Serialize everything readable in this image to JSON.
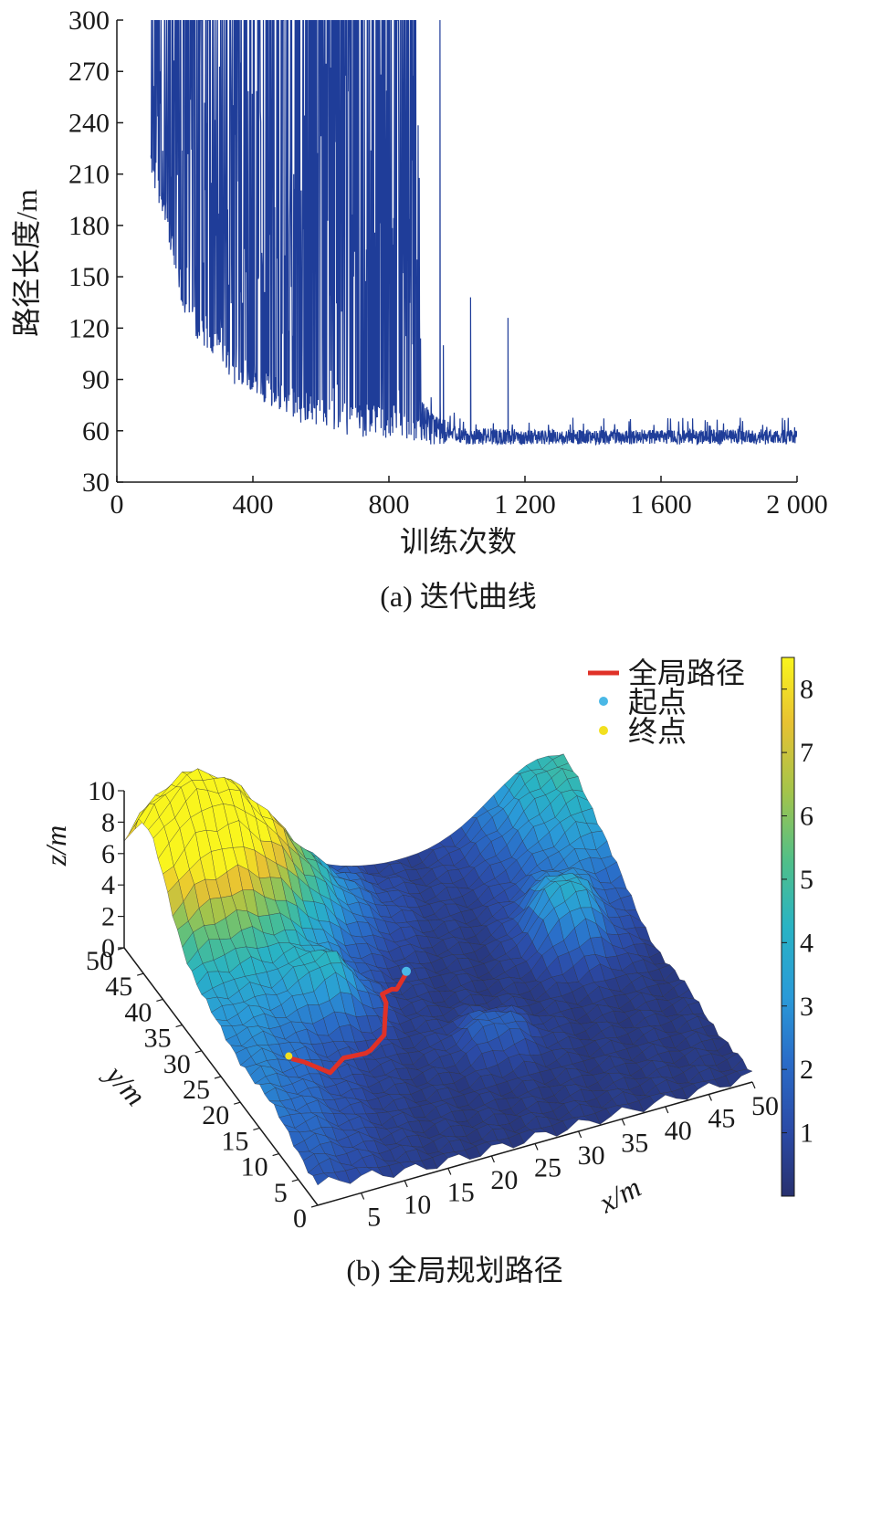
{
  "chart_data": [
    {
      "type": "line",
      "caption": "(a) 迭代曲线",
      "xlabel": "训练次数",
      "ylabel": "路径长度/m",
      "xlim": [
        0,
        2000
      ],
      "ylim": [
        30,
        300
      ],
      "xticks": [
        "0",
        "400",
        "800",
        "1 200",
        "1 600",
        "2 000"
      ],
      "xtick_values": [
        0,
        400,
        800,
        1200,
        1600,
        2000
      ],
      "yticks": [
        "30",
        "60",
        "90",
        "120",
        "150",
        "180",
        "210",
        "240",
        "270",
        "300"
      ],
      "ytick_values": [
        30,
        60,
        90,
        120,
        150,
        180,
        210,
        240,
        270,
        300
      ],
      "line_color": "#1f3d99",
      "series": [
        {
          "values_description_note": "",
          "envelope_x": [
            100,
            150,
            200,
            250,
            300,
            350,
            400,
            450,
            500,
            550,
            600,
            650,
            700,
            750,
            800,
            850,
            880,
            900,
            1000,
            1200,
            1400,
            1600,
            1800,
            2000
          ],
          "envelope_min": [
            210,
            170,
            125,
            110,
            100,
            85,
            80,
            75,
            68,
            63,
            60,
            58,
            57,
            56,
            55,
            54,
            53,
            52,
            52,
            52,
            52,
            52,
            52,
            52
          ],
          "envelope_max": [
            300,
            300,
            300,
            300,
            300,
            300,
            300,
            300,
            300,
            300,
            300,
            300,
            300,
            300,
            300,
            300,
            300,
            95,
            70,
            68,
            68,
            68,
            68,
            68
          ],
          "spikes": [
            [
              950,
              300
            ],
            [
              1040,
              138
            ],
            [
              1150,
              126
            ],
            [
              960,
              110
            ]
          ]
        }
      ]
    },
    {
      "type": "surface3d",
      "caption": "(b) 全局规划路径",
      "xlabel": "x/m",
      "ylabel": "y/m",
      "zlabel": "z/m",
      "xticks": [
        "5",
        "10",
        "15",
        "20",
        "25",
        "30",
        "35",
        "40",
        "45",
        "50"
      ],
      "yticks": [
        "0",
        "5",
        "10",
        "15",
        "20",
        "25",
        "30",
        "35",
        "40",
        "45",
        "50"
      ],
      "zticks": [
        "0",
        "2",
        "4",
        "6",
        "8",
        "10"
      ],
      "colorbar_ticks": [
        "1",
        "2",
        "3",
        "4",
        "5",
        "6",
        "7",
        "8"
      ],
      "colorbar_range": [
        0,
        8.5
      ],
      "colormap": [
        "#3e26a8",
        "#2f5fd0",
        "#1f8fe8",
        "#17b3d6",
        "#3ec28d",
        "#8ec343",
        "#e0b92c",
        "#f9fb15"
      ],
      "legend": [
        {
          "label": "全局路径",
          "color": "#e03127",
          "marker": "line"
        },
        {
          "label": "起点",
          "color": "#4ab8e6",
          "marker": "dot"
        },
        {
          "label": "终点",
          "color": "#f2e020",
          "marker": "dot"
        }
      ]
    }
  ]
}
